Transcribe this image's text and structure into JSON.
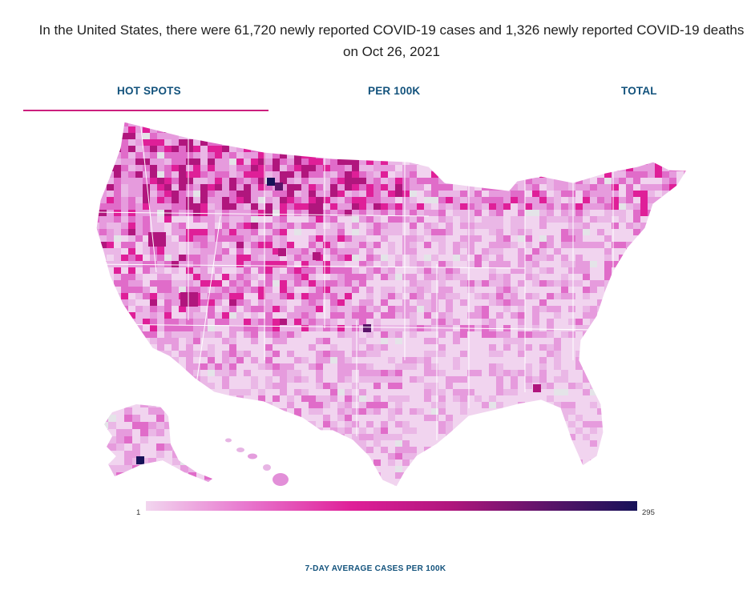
{
  "headline": "In the United States, there were 61,720 newly reported COVID-19 cases and 1,326 newly reported COVID-19 deaths on Oct 26, 2021",
  "tabs": [
    {
      "label": "HOT SPOTS",
      "selected": true
    },
    {
      "label": "PER 100K",
      "selected": false
    },
    {
      "label": "TOTAL",
      "selected": false
    }
  ],
  "map": {
    "region": "United States counties",
    "no_data_color": "#e4e4e8"
  },
  "legend": {
    "title": "7-DAY AVERAGE CASES PER 100K",
    "min_label": "1",
    "max_label": "295",
    "colors": [
      "#f2d6ef",
      "#e879cf",
      "#df1f98",
      "#b0167d",
      "#5b1469",
      "#161258"
    ]
  },
  "colors": {
    "accent": "#cc1f7d",
    "tab_text": "#12527c"
  }
}
